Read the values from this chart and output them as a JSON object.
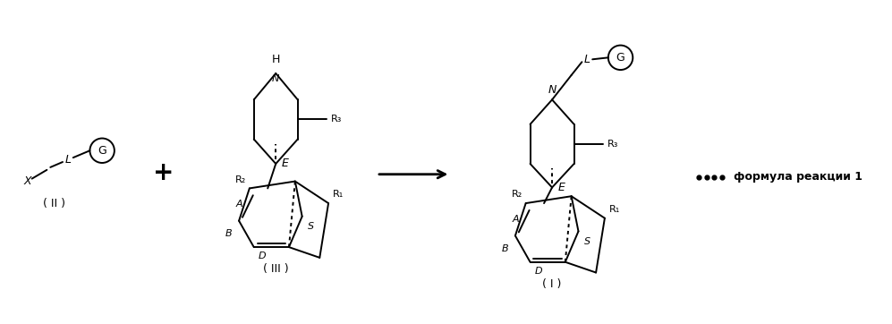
{
  "bg_color": "#ffffff",
  "text_color": "#000000",
  "figsize": [
    9.97,
    3.62
  ],
  "dpi": 100,
  "label_II": "( II )",
  "label_III": "( III )",
  "label_I": "( I )",
  "label_reaction": "формула реакции 1"
}
